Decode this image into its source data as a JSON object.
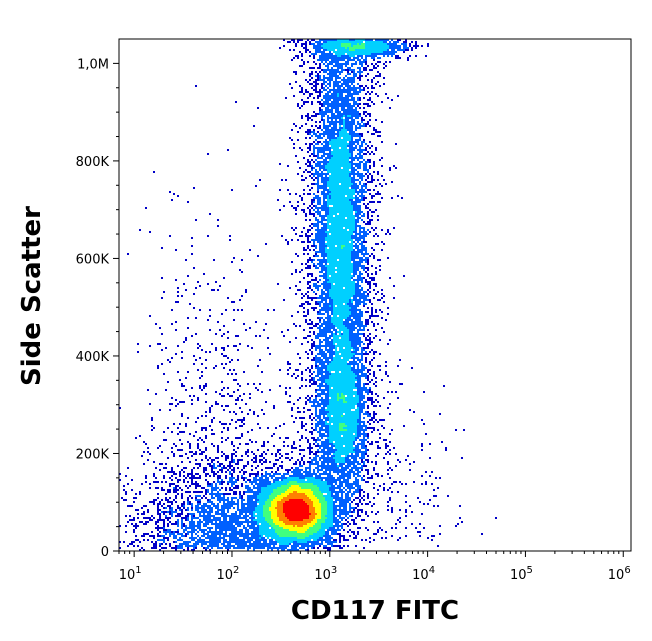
{
  "chart_data": {
    "type": "scatter",
    "subtype": "flow-cytometry-density-dot-plot",
    "title": "",
    "xlabel": "CD117 FITC",
    "ylabel": "Side Scatter",
    "x_scale": "log",
    "xlim": [
      7,
      1200000
    ],
    "ylim": [
      0,
      1050000
    ],
    "x_ticks": [
      {
        "value": 10,
        "base": "10",
        "exp": "1"
      },
      {
        "value": 100,
        "base": "10",
        "exp": "2"
      },
      {
        "value": 1000,
        "base": "10",
        "exp": "3"
      },
      {
        "value": 10000,
        "base": "10",
        "exp": "4"
      },
      {
        "value": 100000,
        "base": "10",
        "exp": "5"
      },
      {
        "value": 1000000,
        "base": "10",
        "exp": "6"
      }
    ],
    "y_ticks": [
      {
        "value": 0,
        "label": "0"
      },
      {
        "value": 200000,
        "label": "200K"
      },
      {
        "value": 400000,
        "label": "400K"
      },
      {
        "value": 600000,
        "label": "600K"
      },
      {
        "value": 800000,
        "label": "800K"
      },
      {
        "value": 1000000,
        "label": "1,0M"
      }
    ],
    "populations": [
      {
        "x_center": 450,
        "y_center": 85000,
        "x_spread_decades": 0.17,
        "y_spread": 30000,
        "relative_density": "highest"
      },
      {
        "x_center": 1300,
        "y_center": 650000,
        "x_spread_decades": 0.11,
        "y_spread": 170000,
        "relative_density": "medium"
      },
      {
        "x_center": 1350,
        "y_center": 290000,
        "x_spread_decades": 0.12,
        "y_spread": 70000,
        "relative_density": "low"
      },
      {
        "x_center": 2000,
        "y_center": 1030000,
        "x_spread_decades": 0.25,
        "y_spread": 15000,
        "relative_density": "saturated-at-top"
      }
    ],
    "density_colors": [
      "#0000c8",
      "#0060ff",
      "#00d0ff",
      "#40ff80",
      "#ffff00",
      "#ff8000",
      "#ff0000"
    ],
    "grid": false,
    "legend": "none"
  }
}
